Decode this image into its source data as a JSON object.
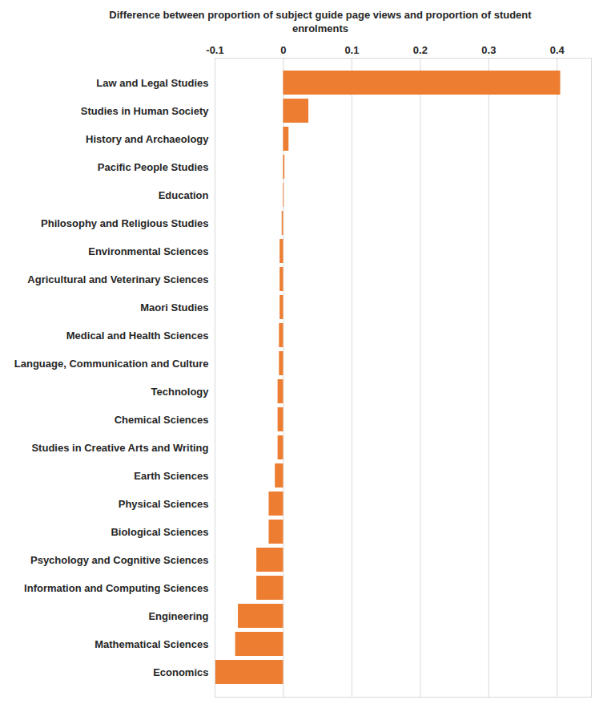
{
  "chart_data": {
    "type": "bar",
    "orientation": "horizontal",
    "xlabel": "Difference between proportion of subject guide page views and proportion of student enrolments",
    "categories": [
      "Law and Legal Studies",
      "Studies in Human Society",
      "History and Archaeology",
      "Pacific People Studies",
      "Education",
      "Philosophy and Religious Studies",
      "Environmental Sciences",
      "Agricultural and Veterinary Sciences",
      "Maori Studies",
      "Medical and Health Sciences",
      "Language, Communication and Culture",
      "Technology",
      "Chemical Sciences",
      "Studies in Creative Arts and Writing",
      "Earth Sciences",
      "Physical Sciences",
      "Biological Sciences",
      "Psychology and Cognitive Sciences",
      "Information and Computing Sciences",
      "Engineering",
      "Mathematical Sciences",
      "Economics"
    ],
    "values": [
      0.405,
      0.037,
      0.008,
      0.002,
      0.001,
      -0.002,
      -0.005,
      -0.005,
      -0.005,
      -0.006,
      -0.006,
      -0.008,
      -0.008,
      -0.008,
      -0.012,
      -0.021,
      -0.021,
      -0.039,
      -0.039,
      -0.066,
      -0.07,
      -0.1
    ],
    "color": "#ed7d31",
    "xlim": [
      -0.1,
      0.45
    ],
    "xticks": [
      -0.1,
      0,
      0.1,
      0.2,
      0.3,
      0.4
    ],
    "grid": true
  }
}
